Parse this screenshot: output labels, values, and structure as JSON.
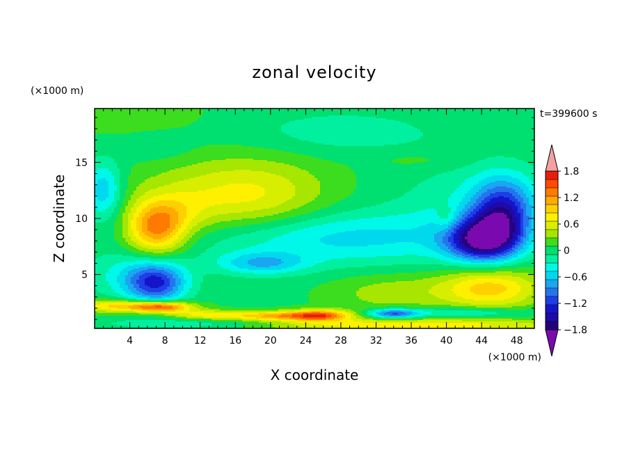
{
  "chart_data": {
    "type": "heatmap",
    "title": "zonal velocity",
    "xlabel": "X coordinate",
    "ylabel": "Z coordinate",
    "x_unit": "(×1000 m)",
    "y_unit": "(×1000 m)",
    "time_label": "t=399600 s",
    "xlim": [
      0,
      50
    ],
    "ylim": [
      0.2,
      19.8
    ],
    "x_ticks": [
      4,
      8,
      12,
      16,
      20,
      24,
      28,
      32,
      36,
      40,
      44,
      48
    ],
    "y_ticks": [
      5,
      10,
      15
    ],
    "colorbar": {
      "min": -2.0,
      "max": 2.0,
      "step": 0.2,
      "tick_labels": [
        "1.8",
        "1.2",
        "0.6",
        "0",
        "−0.6",
        "−1.2",
        "−1.8"
      ],
      "tick_values": [
        1.8,
        1.2,
        0.6,
        0,
        -0.6,
        -1.2,
        -1.8
      ],
      "colors": [
        "#7a0ab0",
        "#25007e",
        "#1f0aa8",
        "#1414c8",
        "#1e3ee6",
        "#2474ee",
        "#1aa6f0",
        "#00d8ee",
        "#00f8e8",
        "#00f0a0",
        "#00e070",
        "#3cdc1e",
        "#a6e600",
        "#d8ee00",
        "#fff000",
        "#ffd000",
        "#ffaa00",
        "#ff7a00",
        "#ff4a00",
        "#e81e0a",
        "#f4a0a0"
      ]
    },
    "field": {
      "background": 0.05,
      "features": [
        {
          "x": 4.5,
          "z": 19.5,
          "sx": 5,
          "sz": 1.5,
          "v": 0.2
        },
        {
          "x": 28,
          "z": 17.7,
          "sx": 8,
          "sz": 1.4,
          "v": -0.25
        },
        {
          "x": 7,
          "z": 16.5,
          "sx": 3,
          "sz": 1.0,
          "v": -0.15
        },
        {
          "x": 37,
          "z": 15.2,
          "sx": 4,
          "sz": 0.6,
          "v": 0.15
        },
        {
          "x": 15,
          "z": 12.0,
          "sx": 7,
          "sz": 2.3,
          "v": 0.55
        },
        {
          "x": 20,
          "z": 12.0,
          "sx": 5,
          "sz": 2.5,
          "v": 0.2
        },
        {
          "x": 7,
          "z": 9.0,
          "sx": 2.3,
          "sz": 1.6,
          "v": 1.15
        },
        {
          "x": 9,
          "z": 10.5,
          "sx": 3,
          "sz": 1.4,
          "v": 0.3
        },
        {
          "x": 1,
          "z": 12.5,
          "sx": 1.5,
          "sz": 1.8,
          "v": -0.7
        },
        {
          "x": 27,
          "z": 8.3,
          "sx": 11,
          "sz": 1.7,
          "v": -0.6
        },
        {
          "x": 19,
          "z": 6.0,
          "sx": 3.5,
          "sz": 0.7,
          "v": -0.65
        },
        {
          "x": 7,
          "z": 4.3,
          "sx": 2.4,
          "sz": 1.3,
          "v": -1.3
        },
        {
          "x": 3,
          "z": 5.0,
          "sx": 3,
          "sz": 1.5,
          "v": -0.3
        },
        {
          "x": 43.5,
          "z": 8.0,
          "sx": 2.6,
          "sz": 1.3,
          "v": -1.3
        },
        {
          "x": 46,
          "z": 9.0,
          "sx": 2.3,
          "sz": 1.7,
          "v": -1.1
        },
        {
          "x": 46.5,
          "z": 11.5,
          "sx": 2.5,
          "sz": 1.8,
          "v": -0.8
        },
        {
          "x": 43,
          "z": 11,
          "sx": 6,
          "sz": 3,
          "v": -0.3
        },
        {
          "x": 45,
          "z": 3.8,
          "sx": 4,
          "sz": 1.3,
          "v": 0.9
        },
        {
          "x": 34,
          "z": 3.4,
          "sx": 5,
          "sz": 1.2,
          "v": 0.35
        },
        {
          "x": 30,
          "z": 5.0,
          "sx": 6,
          "sz": 1.0,
          "v": 0.0
        },
        {
          "x": 40,
          "z": 10.0,
          "sx": 0.8,
          "sz": 0.8,
          "v": 0.3
        },
        {
          "x": 7.5,
          "z": 2.1,
          "sx": 2.5,
          "sz": 0.35,
          "v": 1.55
        },
        {
          "x": 25.5,
          "z": 1.35,
          "sx": 2.5,
          "sz": 0.35,
          "v": 1.45
        },
        {
          "x": 20,
          "z": 1.3,
          "sx": 3,
          "sz": 0.3,
          "v": 0.9
        },
        {
          "x": 13,
          "z": 1.4,
          "sx": 3,
          "sz": 0.3,
          "v": 0.7
        },
        {
          "x": 2,
          "z": 2.2,
          "sx": 3,
          "sz": 0.4,
          "v": 0.8
        },
        {
          "x": 34,
          "z": 1.5,
          "sx": 2,
          "sz": 0.3,
          "v": -1.1
        },
        {
          "x": 42,
          "z": 1.6,
          "sx": 5,
          "sz": 0.35,
          "v": -0.5
        },
        {
          "x": 35,
          "z": 0.5,
          "sx": 14,
          "sz": 0.4,
          "v": 0.75
        },
        {
          "x": 12,
          "z": 0.6,
          "sx": 8,
          "sz": 0.35,
          "v": -0.4
        }
      ]
    }
  }
}
